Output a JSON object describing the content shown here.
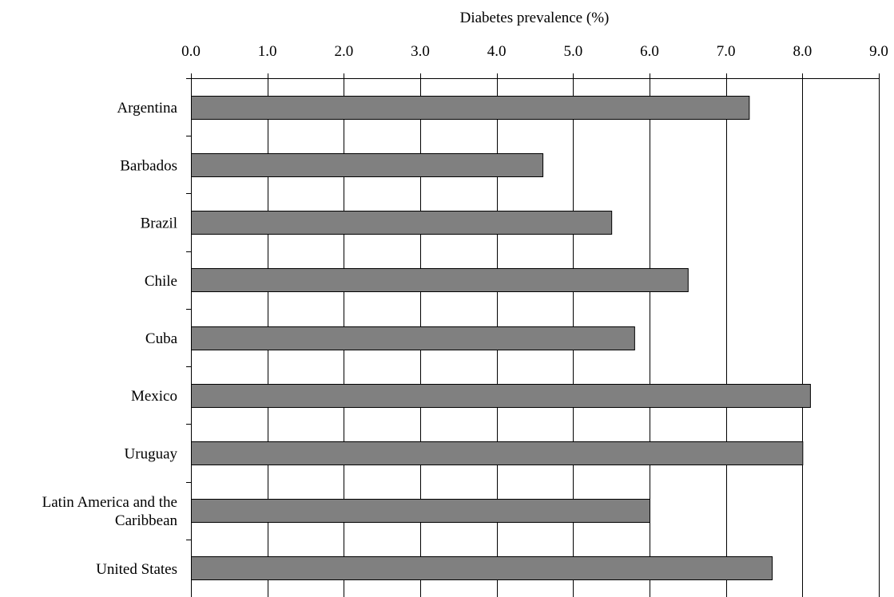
{
  "chart_data": {
    "type": "bar",
    "orientation": "horizontal",
    "title": "",
    "xlabel": "Diabetes prevalence (%)",
    "ylabel": "",
    "xaxis_position": "top",
    "xlim": [
      0,
      9
    ],
    "xticks": [
      "0.0",
      "1.0",
      "2.0",
      "3.0",
      "4.0",
      "5.0",
      "6.0",
      "7.0",
      "8.0",
      "9.0"
    ],
    "grid": "vertical",
    "legend": "none",
    "bar_color": "#808080",
    "categories": [
      [
        "Argentina"
      ],
      [
        "Barbados"
      ],
      [
        "Brazil"
      ],
      [
        "Chile"
      ],
      [
        "Cuba"
      ],
      [
        "Mexico"
      ],
      [
        "Uruguay"
      ],
      [
        "Latin America and the",
        "Caribbean"
      ],
      [
        "United States"
      ]
    ],
    "series": [
      {
        "values": [
          7.3,
          4.6,
          5.5,
          6.5,
          5.8,
          8.1,
          8.0,
          6.0,
          7.6
        ]
      }
    ]
  }
}
